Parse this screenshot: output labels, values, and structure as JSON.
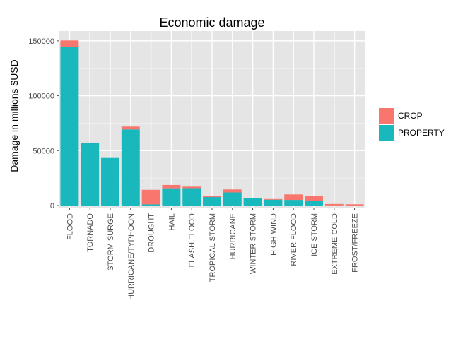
{
  "chart_data": {
    "type": "bar",
    "stacked": true,
    "title": "Economic damage",
    "xlabel": "",
    "ylabel": "Damage in millions $USD",
    "ylim": [
      0,
      157000
    ],
    "yticks": [
      0,
      50000,
      100000,
      150000
    ],
    "grid": true,
    "legend_position": "right",
    "categories": [
      "FLOOD",
      "TORNADO",
      "STORM SURGE",
      "HURRICANE/TYPHOON",
      "DROUGHT",
      "HAIL",
      "FLASH FLOOD",
      "TROPICAL STORM",
      "HURRICANE",
      "WINTER STORM",
      "HIGH WIND",
      "RIVER FLOOD",
      "ICE STORM",
      "EXTREME COLD",
      "FROST/FREEZE"
    ],
    "series": [
      {
        "name": "PROPERTY",
        "color": "#19b8bc",
        "values": [
          144700,
          56900,
          43300,
          69300,
          1000,
          15700,
          15800,
          7700,
          11900,
          6700,
          5300,
          5100,
          3900,
          70,
          10
        ]
      },
      {
        "name": "CROP",
        "color": "#f8766d",
        "values": [
          5700,
          400,
          0,
          2600,
          13300,
          3000,
          1400,
          700,
          2700,
          30,
          640,
          5000,
          5000,
          1300,
          1100
        ]
      }
    ]
  }
}
